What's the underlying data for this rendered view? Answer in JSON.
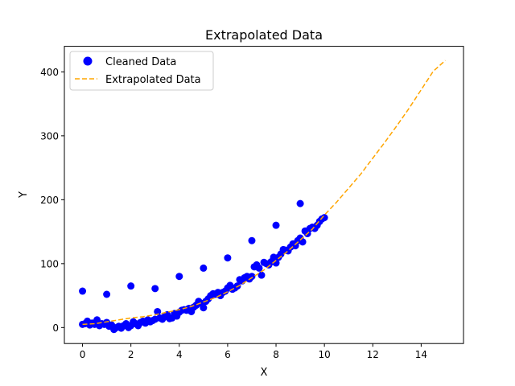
{
  "chart_data": {
    "type": "scatter",
    "title": "Extrapolated Data",
    "xlabel": "X",
    "ylabel": "Y",
    "xlim": [
      -0.75,
      15.75
    ],
    "ylim": [
      -25,
      440
    ],
    "xticks": [
      0,
      2,
      4,
      6,
      8,
      10,
      12,
      14
    ],
    "yticks": [
      0,
      100,
      200,
      300,
      400
    ],
    "grid": false,
    "legend_position": "top-left",
    "series": [
      {
        "name": "Cleaned Data",
        "kind": "scatter",
        "color": "#0000ff",
        "x": [
          0.0,
          0.1,
          0.2,
          0.3,
          0.4,
          0.5,
          0.6,
          0.7,
          0.8,
          0.9,
          1.0,
          1.1,
          1.2,
          1.3,
          1.4,
          1.5,
          1.6,
          1.7,
          1.8,
          1.9,
          2.0,
          2.1,
          2.2,
          2.3,
          2.4,
          2.5,
          2.6,
          2.7,
          2.8,
          2.9,
          3.0,
          3.1,
          3.2,
          3.3,
          3.4,
          3.5,
          3.6,
          3.7,
          3.8,
          3.9,
          4.0,
          4.1,
          4.2,
          4.3,
          4.4,
          4.5,
          4.6,
          4.7,
          4.8,
          4.9,
          5.0,
          5.1,
          5.2,
          5.3,
          5.4,
          5.5,
          5.6,
          5.7,
          5.8,
          5.9,
          6.0,
          6.1,
          6.2,
          6.3,
          6.4,
          6.5,
          6.6,
          6.7,
          6.8,
          6.9,
          7.0,
          7.1,
          7.2,
          7.3,
          7.4,
          7.5,
          7.6,
          7.7,
          7.8,
          7.9,
          8.0,
          8.1,
          8.2,
          8.3,
          8.4,
          8.5,
          8.6,
          8.7,
          8.8,
          8.9,
          9.0,
          9.1,
          9.2,
          9.3,
          9.4,
          9.5,
          9.6,
          9.7,
          9.8,
          9.9,
          10.0,
          0.0,
          1.0,
          2.0,
          3.0,
          4.0,
          5.0,
          6.0,
          7.0,
          8.0,
          9.0
        ],
        "y": [
          5,
          6,
          10,
          4,
          7,
          5,
          12,
          3,
          6,
          5,
          8,
          2,
          4,
          -3,
          0,
          2,
          -1,
          3,
          6,
          0,
          3,
          9,
          6,
          3,
          8,
          10,
          7,
          12,
          9,
          11,
          13,
          25,
          15,
          13,
          17,
          20,
          14,
          15,
          22,
          18,
          24,
          27,
          28,
          27,
          30,
          25,
          32,
          35,
          41,
          38,
          31,
          41,
          45,
          50,
          53,
          52,
          55,
          50,
          55,
          57,
          62,
          66,
          60,
          62,
          65,
          75,
          73,
          78,
          80,
          76,
          80,
          95,
          98,
          93,
          82,
          102,
          100,
          98,
          103,
          110,
          101,
          110,
          115,
          122,
          121,
          120,
          126,
          131,
          128,
          136,
          140,
          134,
          151,
          147,
          155,
          157,
          155,
          160,
          166,
          170,
          172,
          57,
          52,
          65,
          61,
          80,
          93,
          109,
          136,
          160,
          194
        ]
      },
      {
        "name": "Extrapolated Data",
        "kind": "line",
        "style": "dashed",
        "color": "#ffa500",
        "x": [
          0,
          0.5,
          1,
          1.5,
          2,
          2.5,
          3,
          3.5,
          4,
          4.5,
          5,
          5.5,
          6,
          6.5,
          7,
          7.5,
          8,
          8.5,
          9,
          9.5,
          10,
          10.5,
          11,
          11.5,
          12,
          12.5,
          13,
          13.5,
          14,
          14.5,
          15
        ],
        "y": [
          5,
          6,
          9,
          12,
          15,
          17,
          20,
          24,
          28,
          33,
          40,
          47,
          56,
          66,
          78,
          90,
          105,
          120,
          137,
          154,
          176,
          196,
          218,
          240,
          265,
          290,
          316,
          343,
          372,
          401,
          418
        ]
      }
    ]
  }
}
